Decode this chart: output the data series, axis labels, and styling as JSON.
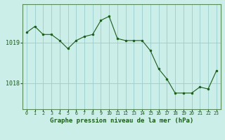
{
  "x": [
    0,
    1,
    2,
    3,
    4,
    5,
    6,
    7,
    8,
    9,
    10,
    11,
    12,
    13,
    14,
    15,
    16,
    17,
    18,
    19,
    20,
    21,
    22,
    23
  ],
  "y": [
    1019.25,
    1019.4,
    1019.2,
    1019.2,
    1019.05,
    1018.85,
    1019.05,
    1019.15,
    1019.2,
    1019.55,
    1019.65,
    1019.1,
    1019.05,
    1019.05,
    1019.05,
    1018.8,
    1018.35,
    1018.1,
    1017.75,
    1017.75,
    1017.75,
    1017.9,
    1017.85,
    1018.3
  ],
  "line_color": "#1a5c1a",
  "marker_color": "#1a5c1a",
  "bg_color": "#cceee8",
  "grid_color": "#99cccc",
  "xlabel": "Graphe pression niveau de la mer (hPa)",
  "ytick_labels": [
    "1018",
    "1019"
  ],
  "ytick_values": [
    1018.0,
    1019.0
  ],
  "ylim_min": 1017.35,
  "ylim_max": 1019.95,
  "xlim_min": -0.5,
  "xlim_max": 23.5,
  "tick_color": "#1a5c1a",
  "border_color": "#5a8a5a",
  "xlabel_fontsize": 6.5,
  "xtick_fontsize": 4.8,
  "ytick_fontsize": 6.0
}
